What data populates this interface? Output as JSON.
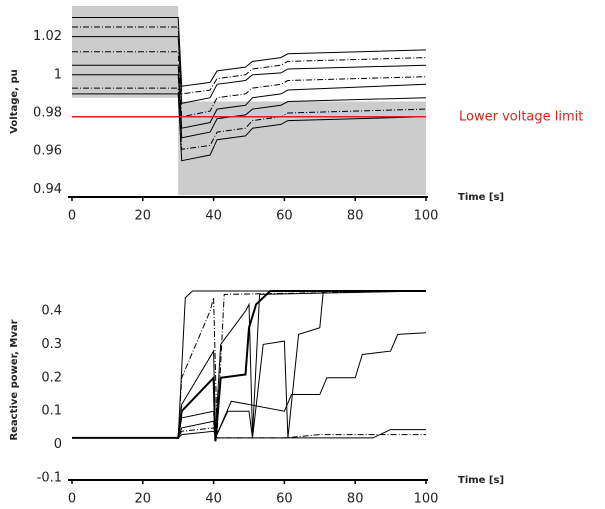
{
  "chart_data": [
    {
      "type": "line",
      "ylabel": "Voltage, pu",
      "xlabel": "Time [s]",
      "xlim": [
        0,
        100
      ],
      "xticks": [
        0,
        20,
        40,
        60,
        80,
        100
      ],
      "ylim": [
        0.936,
        1.036
      ],
      "yticks": [
        0.94,
        0.96,
        0.98,
        1,
        1.02
      ],
      "band_color": "#cccccc",
      "bands": [
        {
          "x": [
            0,
            30
          ],
          "y": [
            0.988,
            1.036
          ]
        },
        {
          "x": [
            30,
            100
          ],
          "y": [
            0.937,
            0.986
          ]
        }
      ],
      "limit": {
        "value": 0.978,
        "label": "Lower voltage limit",
        "color": "#e0201b"
      },
      "series": [
        {
          "color": "#000000",
          "dash": false,
          "x": [
            0,
            30,
            31,
            39,
            41,
            49,
            51,
            59,
            61,
            100
          ],
          "values": [
            1.03,
            1.03,
            0.994,
            0.996,
            1.002,
            1.004,
            1.007,
            1.009,
            1.011,
            1.013
          ]
        },
        {
          "color": "#000000",
          "dash": true,
          "x": [
            0,
            30,
            31,
            39,
            41,
            49,
            51,
            59,
            61,
            100
          ],
          "values": [
            1.025,
            1.025,
            0.99,
            0.992,
            0.998,
            1.0,
            1.003,
            1.005,
            1.007,
            1.009
          ]
        },
        {
          "color": "#000000",
          "dash": false,
          "x": [
            0,
            30,
            31,
            39,
            41,
            49,
            51,
            59,
            61,
            100
          ],
          "values": [
            1.02,
            1.02,
            0.985,
            0.988,
            0.995,
            0.997,
            1.0,
            1.001,
            1.003,
            1.005
          ]
        },
        {
          "color": "#000000",
          "dash": true,
          "x": [
            0,
            30,
            31,
            39,
            41,
            49,
            51,
            59,
            61,
            100
          ],
          "values": [
            1.012,
            1.012,
            0.978,
            0.981,
            0.988,
            0.99,
            0.993,
            0.995,
            0.997,
            0.999
          ]
        },
        {
          "color": "#000000",
          "dash": false,
          "x": [
            0,
            30,
            31,
            39,
            41,
            49,
            51,
            59,
            61,
            100
          ],
          "values": [
            1.005,
            1.005,
            0.972,
            0.975,
            0.982,
            0.984,
            0.988,
            0.99,
            0.992,
            0.995
          ]
        },
        {
          "color": "#000000",
          "dash": false,
          "x": [
            0,
            30,
            31,
            39,
            41,
            49,
            51,
            59,
            61,
            100
          ],
          "values": [
            1.0,
            1.0,
            0.967,
            0.97,
            0.977,
            0.979,
            0.982,
            0.984,
            0.986,
            0.988
          ]
        },
        {
          "color": "#000000",
          "dash": true,
          "x": [
            0,
            30,
            31,
            39,
            41,
            49,
            51,
            59,
            61,
            100
          ],
          "values": [
            0.993,
            0.993,
            0.961,
            0.963,
            0.97,
            0.972,
            0.976,
            0.978,
            0.98,
            0.982
          ]
        },
        {
          "color": "#000000",
          "dash": false,
          "x": [
            0,
            30,
            31,
            39,
            41,
            49,
            51,
            59,
            61,
            100
          ],
          "values": [
            0.99,
            0.99,
            0.955,
            0.958,
            0.966,
            0.968,
            0.972,
            0.974,
            0.976,
            0.978
          ]
        }
      ]
    },
    {
      "type": "line",
      "ylabel": "Reactive power, Mvar",
      "xlabel": "Time [s]",
      "xlim": [
        0,
        100
      ],
      "xticks": [
        0,
        20,
        40,
        60,
        80,
        100
      ],
      "ylim": [
        -0.106,
        0.493
      ],
      "yticks": [
        -0.1,
        0,
        0.1,
        0.2,
        0.3,
        0.4
      ],
      "series": [
        {
          "color": "#000000",
          "dash": false,
          "width": 1,
          "x": [
            0,
            30,
            32,
            34,
            100
          ],
          "values": [
            0.02,
            0.02,
            0.44,
            0.46,
            0.46
          ]
        },
        {
          "color": "#000000",
          "dash": true,
          "width": 1,
          "x": [
            0,
            30,
            31,
            39,
            40,
            41,
            43,
            100
          ],
          "values": [
            0.02,
            0.02,
            0.2,
            0.4,
            0.44,
            0.03,
            0.45,
            0.46
          ]
        },
        {
          "color": "#000000",
          "dash": false,
          "width": 1,
          "x": [
            0,
            30,
            31,
            40,
            40.5,
            42,
            49,
            50,
            51,
            53,
            100
          ],
          "values": [
            0.02,
            0.02,
            0.12,
            0.28,
            0.03,
            0.3,
            0.4,
            0.42,
            0.03,
            0.45,
            0.46
          ]
        },
        {
          "color": "#000000",
          "dash": false,
          "width": 2,
          "x": [
            0,
            30,
            31,
            40,
            40.5,
            42,
            49,
            50,
            52,
            56,
            100
          ],
          "values": [
            0.02,
            0.02,
            0.1,
            0.2,
            0.01,
            0.2,
            0.21,
            0.35,
            0.42,
            0.46,
            0.46
          ]
        },
        {
          "color": "#000000",
          "dash": false,
          "width": 1,
          "x": [
            0,
            30,
            31,
            40,
            40.5,
            44,
            50,
            51,
            54,
            60,
            61,
            64,
            70,
            71,
            100
          ],
          "values": [
            0.02,
            0.02,
            0.08,
            0.1,
            0.02,
            0.1,
            0.1,
            0.02,
            0.3,
            0.31,
            0.02,
            0.33,
            0.35,
            0.46,
            0.46
          ]
        },
        {
          "color": "#000000",
          "dash": false,
          "width": 1,
          "x": [
            0,
            30,
            31,
            40,
            40.5,
            45,
            60,
            62,
            70,
            72,
            80,
            82,
            90,
            92,
            100
          ],
          "values": [
            0.02,
            0.02,
            0.05,
            0.07,
            0.02,
            0.13,
            0.1,
            0.15,
            0.15,
            0.2,
            0.2,
            0.27,
            0.28,
            0.33,
            0.335
          ]
        },
        {
          "color": "#000000",
          "dash": true,
          "width": 1,
          "x": [
            0,
            30,
            31,
            40,
            41,
            60,
            70,
            100
          ],
          "values": [
            0.02,
            0.02,
            0.04,
            0.05,
            0.02,
            0.02,
            0.03,
            0.03
          ]
        },
        {
          "color": "#000000",
          "dash": false,
          "width": 1,
          "x": [
            0,
            30,
            31,
            40,
            41,
            85,
            90,
            100
          ],
          "values": [
            0.02,
            0.02,
            0.03,
            0.04,
            0.02,
            0.02,
            0.045,
            0.045
          ]
        }
      ]
    }
  ]
}
